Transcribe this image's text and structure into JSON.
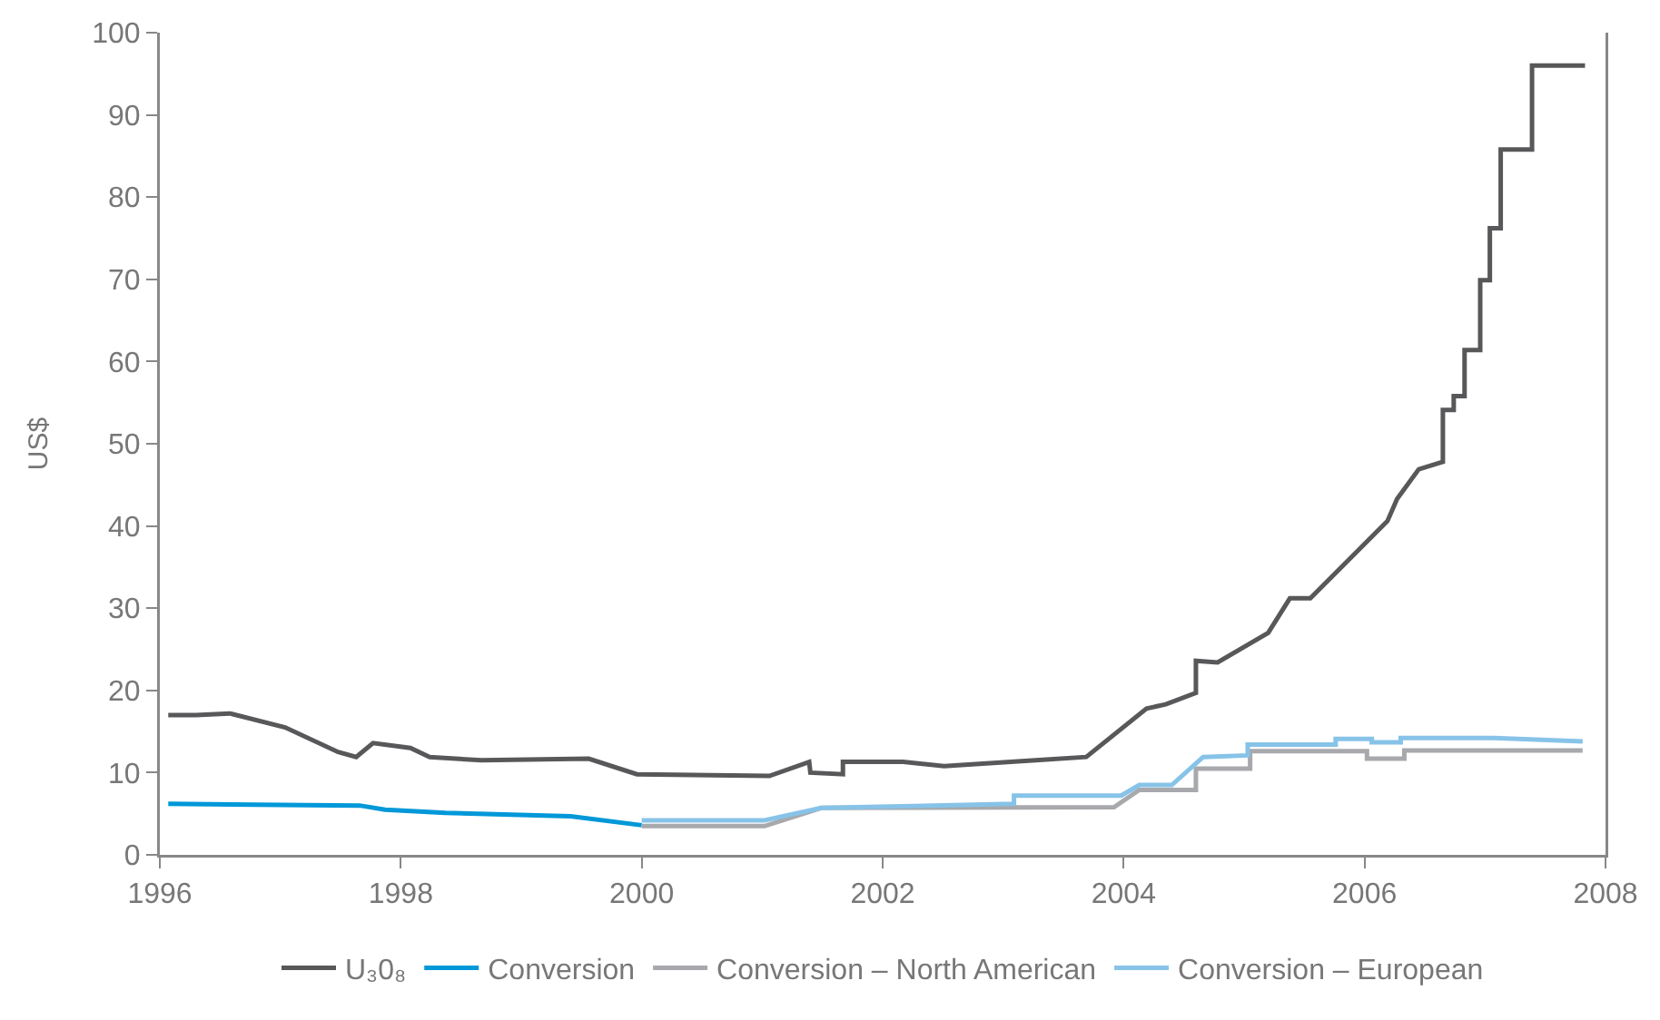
{
  "chart_data": {
    "type": "line",
    "ylabel": "US$",
    "xlim": [
      1996,
      2008
    ],
    "xticks": [
      1996,
      1998,
      2000,
      2002,
      2004,
      2006,
      2008
    ],
    "ylim": [
      0,
      100
    ],
    "yticks": [
      0,
      10,
      20,
      30,
      40,
      50,
      60,
      70,
      80,
      90,
      100
    ],
    "grid": false,
    "legend": "bottom",
    "marker": "none",
    "line_style": "solid",
    "series": [
      {
        "name": "U₃0₈",
        "color": "#58585a",
        "x": [
          1996.07,
          1996.3,
          1996.58,
          1997.04,
          1997.48,
          1997.63,
          1997.77,
          1998.08,
          1998.24,
          1998.67,
          1999.56,
          1999.96,
          2001.06,
          2001.39,
          2001.4,
          2001.67,
          2001.67,
          2002.17,
          2002.51,
          2003.27,
          2003.69,
          2004.19,
          2004.35,
          2004.6,
          2004.6,
          2004.78,
          2005.2,
          2005.38,
          2005.55,
          2006.19,
          2006.27,
          2006.45,
          2006.65,
          2006.65,
          2006.74,
          2006.74,
          2006.83,
          2006.83,
          2006.96,
          2006.96,
          2007.04,
          2007.04,
          2007.13,
          2007.13,
          2007.39,
          2007.39,
          2007.83
        ],
        "values": [
          17.0,
          17.0,
          17.2,
          15.5,
          12.5,
          11.9,
          13.6,
          13.0,
          11.9,
          11.5,
          11.7,
          9.8,
          9.6,
          11.3,
          10.0,
          9.8,
          11.3,
          11.3,
          10.8,
          11.5,
          11.9,
          17.8,
          18.3,
          19.7,
          23.6,
          23.4,
          27.0,
          31.2,
          31.2,
          40.6,
          43.3,
          46.9,
          47.8,
          54.1,
          54.1,
          55.8,
          55.8,
          61.4,
          61.4,
          69.9,
          69.9,
          76.2,
          76.2,
          85.8,
          85.8,
          96,
          96
        ]
      },
      {
        "name": "Conversion",
        "color": "#0098d8",
        "x": [
          1996.07,
          1997.66,
          1997.87,
          1998.37,
          1999.41,
          2000.0
        ],
        "values": [
          6.2,
          6.0,
          5.5,
          5.1,
          4.7,
          3.6
        ]
      },
      {
        "name": "Conversion – North American",
        "color": "#a7a9ac",
        "x": [
          2000.0,
          2001.02,
          2001.49,
          2003.92,
          2004.13,
          2004.6,
          2004.6,
          2005.05,
          2005.05,
          2006.02,
          2006.02,
          2006.33,
          2006.33,
          2007.81
        ],
        "values": [
          3.5,
          3.5,
          5.7,
          5.8,
          7.9,
          7.9,
          10.5,
          10.5,
          12.6,
          12.6,
          11.7,
          11.7,
          12.7,
          12.7
        ]
      },
      {
        "name": "Conversion – European",
        "color": "#87c3e8",
        "x": [
          2000.0,
          2001.02,
          2001.49,
          2003.09,
          2003.09,
          2003.98,
          2004.13,
          2004.4,
          2004.66,
          2005.03,
          2005.03,
          2005.76,
          2005.76,
          2006.06,
          2006.06,
          2006.3,
          2006.3,
          2007.08,
          2007.81
        ],
        "values": [
          4.2,
          4.2,
          5.7,
          6.2,
          7.2,
          7.2,
          8.5,
          8.5,
          11.9,
          12.1,
          13.4,
          13.4,
          14.1,
          14.1,
          13.7,
          13.7,
          14.2,
          14.2,
          13.8
        ]
      }
    ]
  }
}
